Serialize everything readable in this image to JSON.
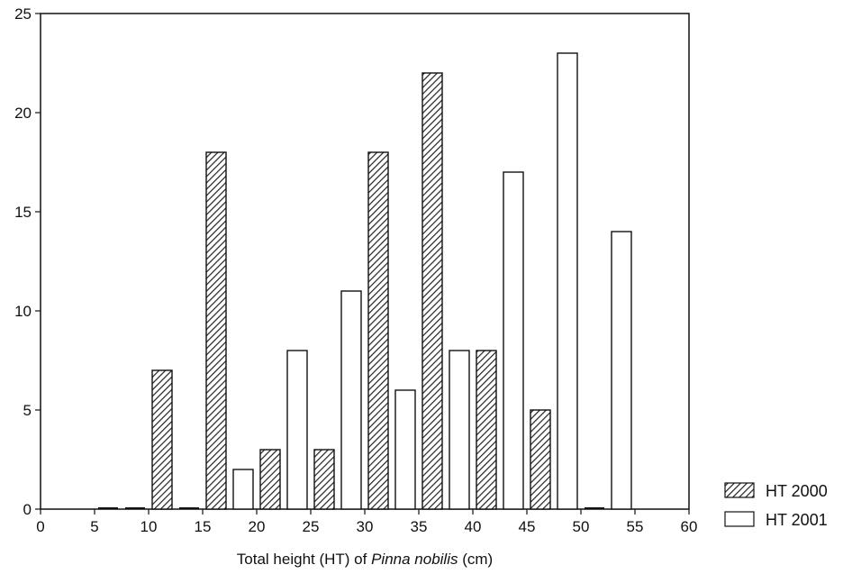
{
  "chart_data": {
    "type": "bar",
    "xlabel_parts": [
      "Total height (HT) of ",
      "Pinna nobilis",
      " (cm)"
    ],
    "ylabel": "",
    "xlim": [
      0,
      60
    ],
    "ylim": [
      0,
      25
    ],
    "xticks": [
      0,
      5,
      10,
      15,
      20,
      25,
      30,
      35,
      40,
      45,
      50,
      55,
      60
    ],
    "yticks": [
      0,
      5,
      10,
      15,
      20,
      25
    ],
    "bin_width": 5,
    "bins": [
      5,
      10,
      15,
      20,
      25,
      30,
      35,
      40,
      45,
      50
    ],
    "series": [
      {
        "name": "HT 2000",
        "fill": "hatched",
        "values": [
          0,
          7,
          18,
          3,
          3,
          18,
          22,
          8,
          5,
          0
        ]
      },
      {
        "name": "HT 2001",
        "fill": "white",
        "values": [
          0,
          0,
          2,
          8,
          11,
          6,
          8,
          17,
          23,
          14
        ]
      }
    ],
    "grid": false,
    "legend_position": "bottom-right"
  }
}
